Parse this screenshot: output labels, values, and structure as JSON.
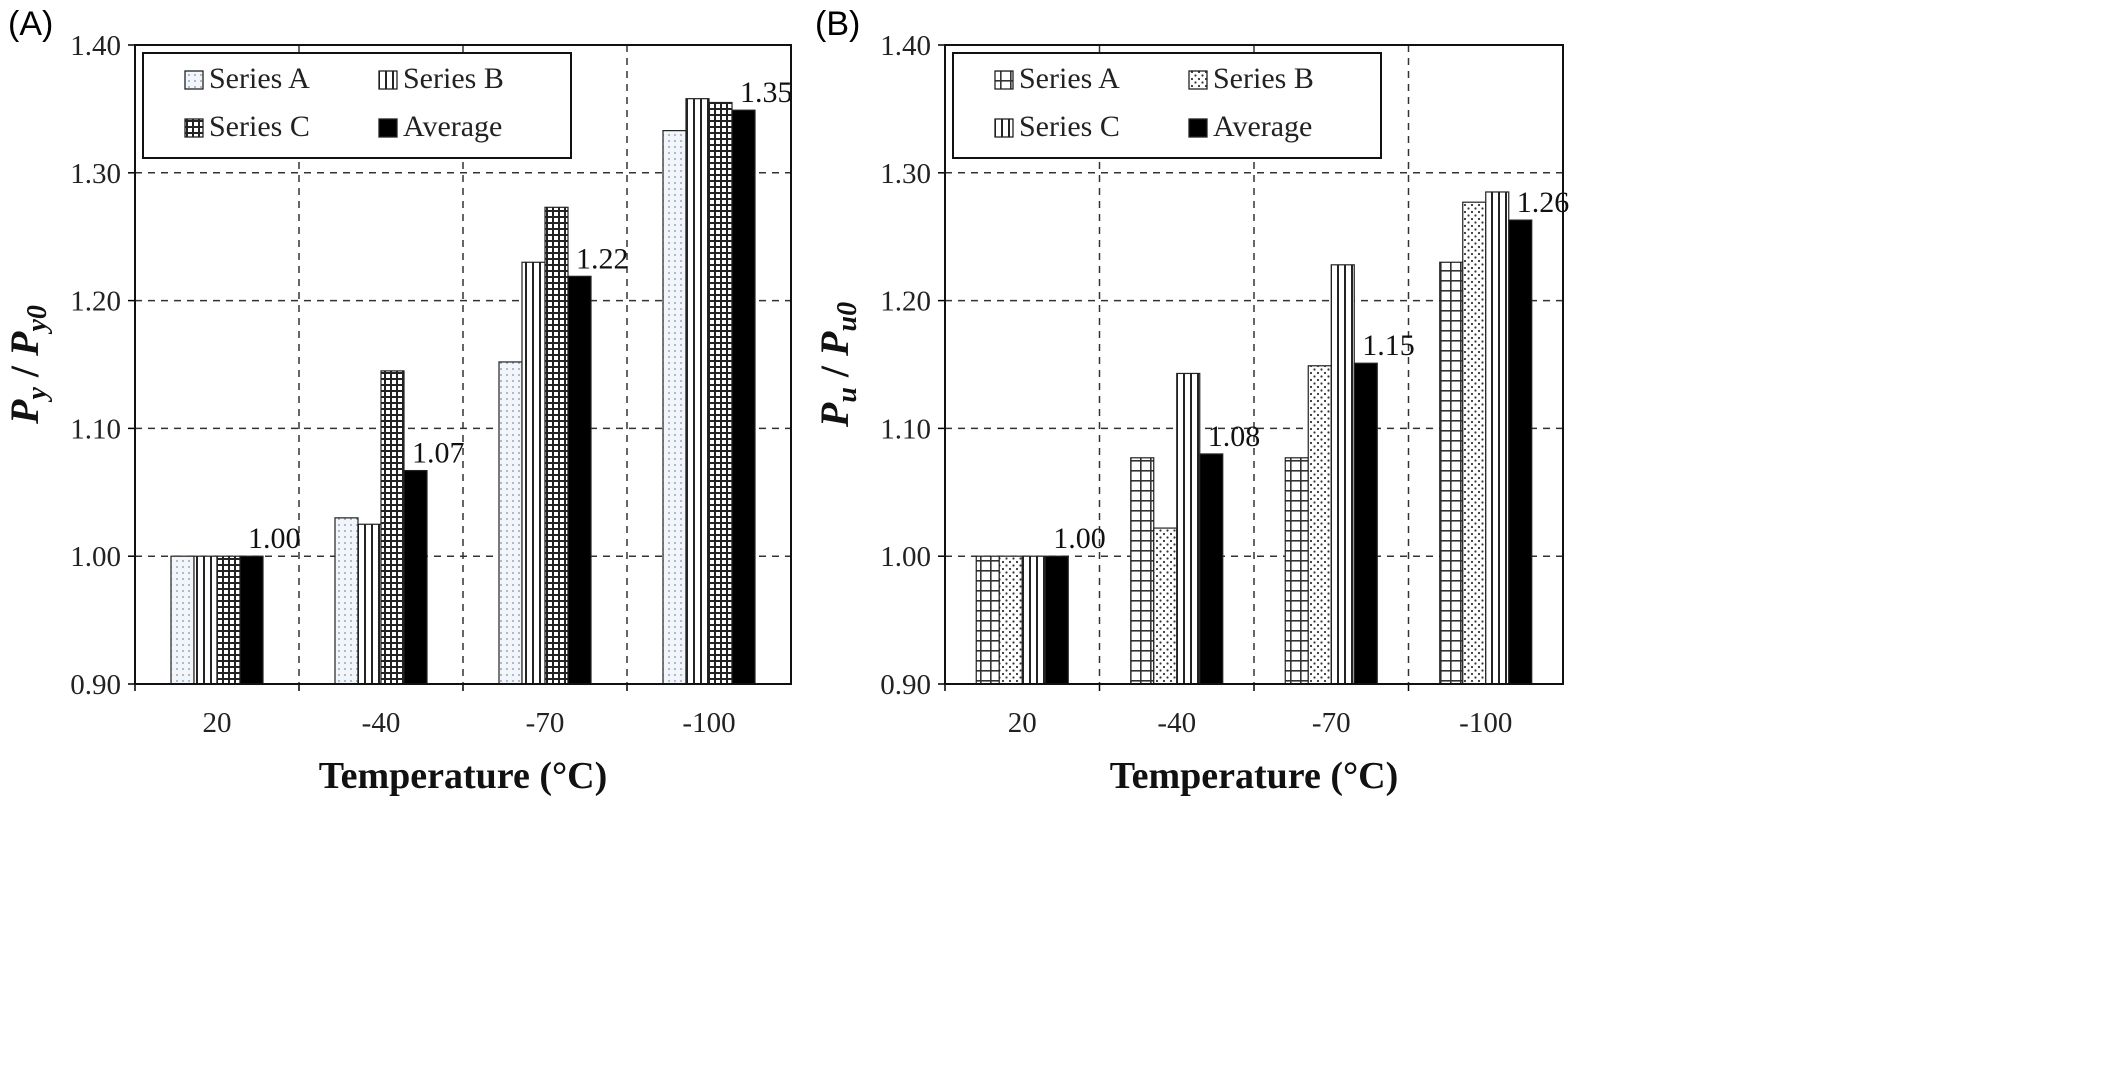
{
  "chart_data": [
    {
      "type": "bar",
      "panel_label": "(A)",
      "categories": [
        "20",
        "-40",
        "-70",
        "-100"
      ],
      "series": [
        {
          "name": "Series A",
          "values": [
            1.0,
            1.03,
            1.152,
            1.333
          ]
        },
        {
          "name": "Series B",
          "values": [
            1.0,
            1.025,
            1.23,
            1.358
          ]
        },
        {
          "name": "Series C",
          "values": [
            1.0,
            1.145,
            1.273,
            1.355
          ]
        },
        {
          "name": "Average",
          "values": [
            1.0,
            1.067,
            1.219,
            1.349
          ]
        }
      ],
      "data_labels": [
        "1.00",
        "1.07",
        "1.22",
        "1.35"
      ],
      "xlabel": "Temperature (°C)",
      "ylabel": {
        "main": "P",
        "sub1": "y",
        "sep": " / ",
        "main2": "P",
        "sub2": "y0"
      },
      "ylim": [
        0.9,
        1.4
      ],
      "yticks": [
        "0.90",
        "1.00",
        "1.10",
        "1.20",
        "1.30",
        "1.40"
      ],
      "grid": true,
      "legend_position": "top-left",
      "patterns": [
        "dots-fine",
        "vertical-lines",
        "grid-dense",
        "solid"
      ]
    },
    {
      "type": "bar",
      "panel_label": "(B)",
      "categories": [
        "20",
        "-40",
        "-70",
        "-100"
      ],
      "series": [
        {
          "name": "Series A",
          "values": [
            1.0,
            1.077,
            1.077,
            1.23
          ]
        },
        {
          "name": "Series B",
          "values": [
            1.0,
            1.022,
            1.149,
            1.277
          ]
        },
        {
          "name": "Series C",
          "values": [
            1.0,
            1.143,
            1.228,
            1.285
          ]
        },
        {
          "name": "Average",
          "values": [
            1.0,
            1.08,
            1.151,
            1.263
          ]
        }
      ],
      "data_labels": [
        "1.00",
        "1.08",
        "1.15",
        "1.26"
      ],
      "xlabel": "Temperature (°C)",
      "ylabel": {
        "main": "P",
        "sub1": "u",
        "sep": " / ",
        "main2": "P",
        "sub2": "u0"
      },
      "ylim": [
        0.9,
        1.4
      ],
      "yticks": [
        "0.90",
        "1.00",
        "1.10",
        "1.20",
        "1.30",
        "1.40"
      ],
      "grid": true,
      "legend_position": "top-left",
      "patterns": [
        "grid-coarse",
        "dots-coarse",
        "vertical-lines",
        "solid"
      ]
    }
  ]
}
